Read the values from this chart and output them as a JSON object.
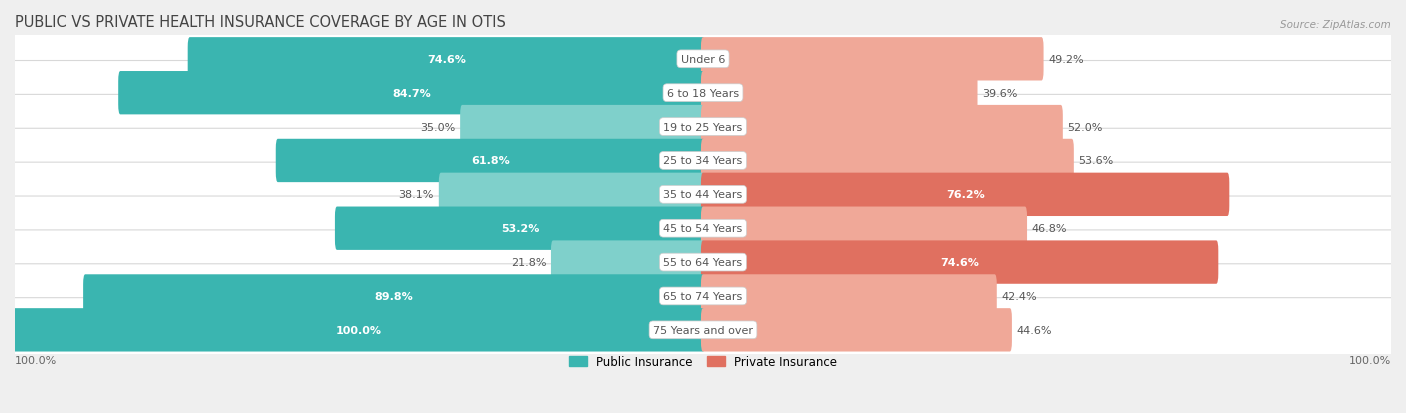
{
  "title": "PUBLIC VS PRIVATE HEALTH INSURANCE COVERAGE BY AGE IN OTIS",
  "source": "Source: ZipAtlas.com",
  "categories": [
    "Under 6",
    "6 to 18 Years",
    "19 to 25 Years",
    "25 to 34 Years",
    "35 to 44 Years",
    "45 to 54 Years",
    "55 to 64 Years",
    "65 to 74 Years",
    "75 Years and over"
  ],
  "public_values": [
    74.6,
    84.7,
    35.0,
    61.8,
    38.1,
    53.2,
    21.8,
    89.8,
    100.0
  ],
  "private_values": [
    49.2,
    39.6,
    52.0,
    53.6,
    76.2,
    46.8,
    74.6,
    42.4,
    44.6
  ],
  "public_color_high": "#3ab5b0",
  "public_color_low": "#7fd0cb",
  "private_color_high": "#e07060",
  "private_color_low": "#f0a898",
  "background_color": "#efefef",
  "row_bg_color": "#ffffff",
  "row_border_color": "#d8d8d8",
  "bar_height": 0.68,
  "max_value": 100.0,
  "title_fontsize": 10.5,
  "label_fontsize": 8.0,
  "value_fontsize": 8.0,
  "legend_fontsize": 8.5,
  "source_fontsize": 7.5,
  "high_threshold_public": 50,
  "high_threshold_private": 65
}
